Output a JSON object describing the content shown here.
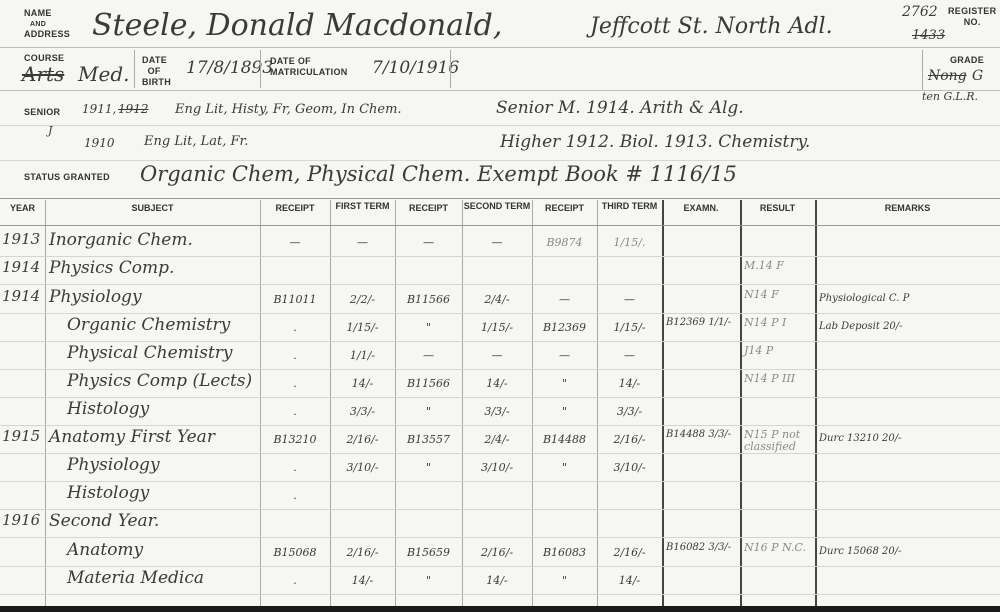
{
  "labels": {
    "name": "Name",
    "and": "and",
    "address": "Address",
    "register": "Register",
    "no": "No.",
    "course": "Course",
    "date_of_birth_1": "Date",
    "date_of_birth_2": "of",
    "date_of_birth_3": "Birth",
    "date_of_matric_1": "Date of",
    "date_of_matric_2": "Matriculation",
    "grade": "Grade",
    "senior": "Senior",
    "status_granted": "Status Granted"
  },
  "student": {
    "name": "Steele, Donald Macdonald,",
    "address": "Jeffcott St. North Adl.",
    "register_no": "2762",
    "register_no_struck": "1433",
    "course_struck": "Arts",
    "course": "Med.",
    "date_of_birth": "17/8/1893",
    "date_of_matriculation": "7/10/1916",
    "grade_struck": "Nong",
    "grade": "G",
    "grade_note": "ten G.L.R."
  },
  "senior": {
    "line1_year": "1911,",
    "line1_year_struck": "1912",
    "line1_subjects": "Eng Lit, Histy, Fr, Geom, In Chem.",
    "line1_right": "Senior M. 1914. Arith & Alg.",
    "line2_mark": "J",
    "line2_year": "1910",
    "line2_subjects": "Eng Lit, Lat, Fr.",
    "line2_right": "Higher 1912. Biol. 1913. Chemistry."
  },
  "status_granted": "Organic Chem, Physical Chem. Exempt Book # 1116/15",
  "table": {
    "headers": [
      "Year",
      "Subject",
      "Receipt",
      "First Term",
      "Receipt",
      "Second Term",
      "Receipt",
      "Third Term",
      "Examn.",
      "Result",
      "Remarks"
    ],
    "rows": [
      [
        "1913",
        "Inorganic Chem.",
        "—",
        "—",
        "—",
        "—",
        "B9874",
        "1/15/.",
        "",
        "",
        ""
      ],
      [
        "1914",
        "Physics Comp.",
        "",
        "",
        "",
        "",
        "",
        "",
        "",
        "M.14 F",
        ""
      ],
      [
        "1914",
        "Physiology",
        "B11011",
        "2/2/-",
        "B11566",
        "2/4/-",
        "—",
        "—",
        "",
        "N14 F",
        "Physiological C. P"
      ],
      [
        "",
        "Organic Chemistry",
        ".",
        "1/15/-",
        "\"",
        "1/15/-",
        "B12369",
        "1/15/-",
        "B12369 1/1/-",
        "N14 P I",
        "Lab Deposit 20/-"
      ],
      [
        "",
        "Physical Chemistry",
        ".",
        "1/1/-",
        "—",
        "—",
        "—",
        "—",
        "",
        "J14 P",
        ""
      ],
      [
        "",
        "Physics Comp (Lects)",
        ".",
        "14/-",
        "B11566",
        "14/-",
        "\"",
        "14/-",
        "",
        "N14 P III",
        ""
      ],
      [
        "",
        "Histology",
        ".",
        "3/3/-",
        "\"",
        "3/3/-",
        "\"",
        "3/3/-",
        "",
        "",
        ""
      ],
      [
        "1915",
        "Anatomy First Year",
        "B13210",
        "2/16/-",
        "B13557",
        "2/4/-",
        "B14488",
        "2/16/-",
        "B14488 3/3/-",
        "N15 P not classified",
        "Durc 13210 20/-"
      ],
      [
        "",
        "Physiology",
        ".",
        "3/10/-",
        "\"",
        "3/10/-",
        "\"",
        "3/10/-",
        "",
        "",
        ""
      ],
      [
        "",
        "Histology",
        ".",
        "",
        "",
        "",
        "",
        "",
        "",
        "",
        ""
      ],
      [
        "1916",
        "Second Year.",
        "",
        "",
        "",
        "",
        "",
        "",
        "",
        "",
        ""
      ],
      [
        "",
        "Anatomy",
        "B15068",
        "2/16/-",
        "B15659",
        "2/16/-",
        "B16083",
        "2/16/-",
        "B16082 3/3/-",
        "N16 P N.C.",
        "Durc 15068 20/-"
      ],
      [
        "",
        "Materia Medica",
        ".",
        "14/-",
        "\"",
        "14/-",
        "\"",
        "14/-",
        "",
        "",
        ""
      ]
    ]
  }
}
